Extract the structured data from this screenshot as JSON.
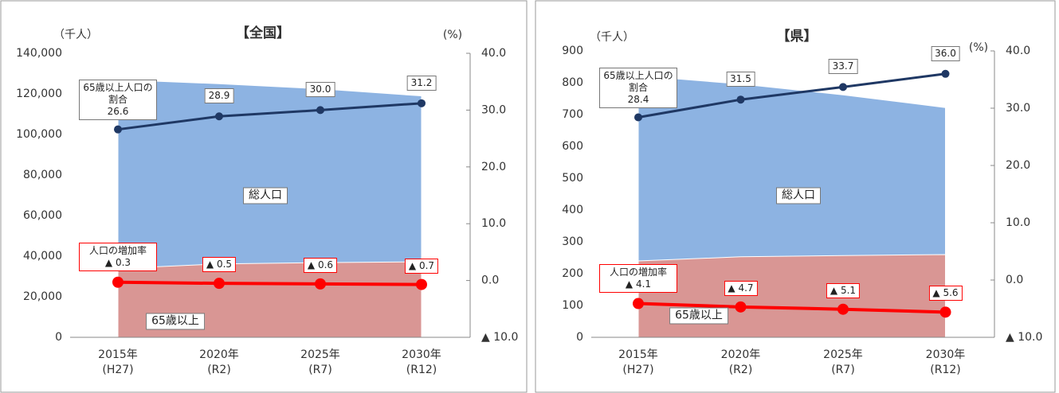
{
  "chart_data": [
    {
      "type": "area",
      "title": "【全国】",
      "y_label": "（千人）",
      "y2_label": "(%)",
      "categories": [
        "2015年",
        "2020年",
        "2025年",
        "2030年"
      ],
      "category_sublabels": [
        "(H27)",
        "(R2)",
        "(R7)",
        "(R12)"
      ],
      "ylim": [
        0,
        140000
      ],
      "yticks": [
        0,
        {
          "value": 20000,
          "label": "20,000"
        },
        {
          "value": 40000,
          "label": "40,000"
        },
        {
          "value": 60000,
          "label": "60,000"
        },
        {
          "value": 80000,
          "label": "80,000"
        },
        {
          "value": 100000,
          "label": "100,000"
        },
        {
          "value": 120000,
          "label": "120,000"
        },
        {
          "value": 140000,
          "label": "140,000"
        }
      ],
      "y2lim": [
        -10,
        40
      ],
      "y2ticks": [
        {
          "value": -10,
          "label": "▲ 10.0"
        },
        {
          "value": 0,
          "label": "0.0"
        },
        {
          "value": 10,
          "label": "10.0"
        },
        {
          "value": 20,
          "label": "20.0"
        },
        {
          "value": 30,
          "label": "30.0"
        },
        {
          "value": 40,
          "label": "40.0"
        }
      ],
      "series": [
        {
          "name": "総人口",
          "kind": "area",
          "color": "#8db3e2",
          "values": [
            127000,
            125000,
            122500,
            119000
          ]
        },
        {
          "name": "65歳以上",
          "kind": "area",
          "color": "#d99694",
          "values": [
            33900,
            36200,
            36800,
            37200
          ]
        },
        {
          "name": "65歳以上人口の割合",
          "kind": "line",
          "axis": "y2",
          "color": "#1f3864",
          "values": [
            26.6,
            28.9,
            30.0,
            31.2
          ],
          "value_labels": [
            "26.6",
            "28.9",
            "30.0",
            "31.2"
          ]
        },
        {
          "name": "人口の増加率",
          "kind": "line",
          "axis": "y2",
          "color": "#ff0000",
          "values": [
            -0.3,
            -0.5,
            -0.6,
            -0.7
          ],
          "value_labels": [
            "▲ 0.3",
            "▲ 0.5",
            "▲ 0.6",
            "▲ 0.7"
          ]
        }
      ]
    },
    {
      "type": "area",
      "title": "【県】",
      "y_label": "（千人）",
      "y2_label": "(%)",
      "categories": [
        "2015年",
        "2020年",
        "2025年",
        "2030年"
      ],
      "category_sublabels": [
        "(H27)",
        "(R2)",
        "(R7)",
        "(R12)"
      ],
      "ylim": [
        0,
        900
      ],
      "yticks": [
        0,
        100,
        200,
        300,
        400,
        500,
        600,
        700,
        800,
        900
      ],
      "y2lim": [
        -10,
        40
      ],
      "y2ticks": [
        {
          "value": -10,
          "label": "▲ 10.0"
        },
        {
          "value": 0,
          "label": "0.0"
        },
        {
          "value": 10,
          "label": "10.0"
        },
        {
          "value": 20,
          "label": "20.0"
        },
        {
          "value": 30,
          "label": "30.0"
        },
        {
          "value": 40,
          "label": "40.0"
        }
      ],
      "series": [
        {
          "name": "総人口",
          "kind": "area",
          "color": "#8db3e2",
          "values": [
            822,
            796,
            762,
            722
          ]
        },
        {
          "name": "65歳以上",
          "kind": "area",
          "color": "#d99694",
          "values": [
            240,
            253,
            257,
            260
          ]
        },
        {
          "name": "65歳以上人口の割合",
          "kind": "line",
          "axis": "y2",
          "color": "#1f3864",
          "values": [
            28.4,
            31.5,
            33.7,
            36.0
          ],
          "value_labels": [
            "28.4",
            "31.5",
            "33.7",
            "36.0"
          ]
        },
        {
          "name": "人口の増加率",
          "kind": "line",
          "axis": "y2",
          "color": "#ff0000",
          "values": [
            -4.1,
            -4.7,
            -5.1,
            -5.6
          ],
          "value_labels": [
            "▲ 4.1",
            "▲ 4.7",
            "▲ 5.1",
            "▲ 5.6"
          ]
        }
      ]
    }
  ]
}
